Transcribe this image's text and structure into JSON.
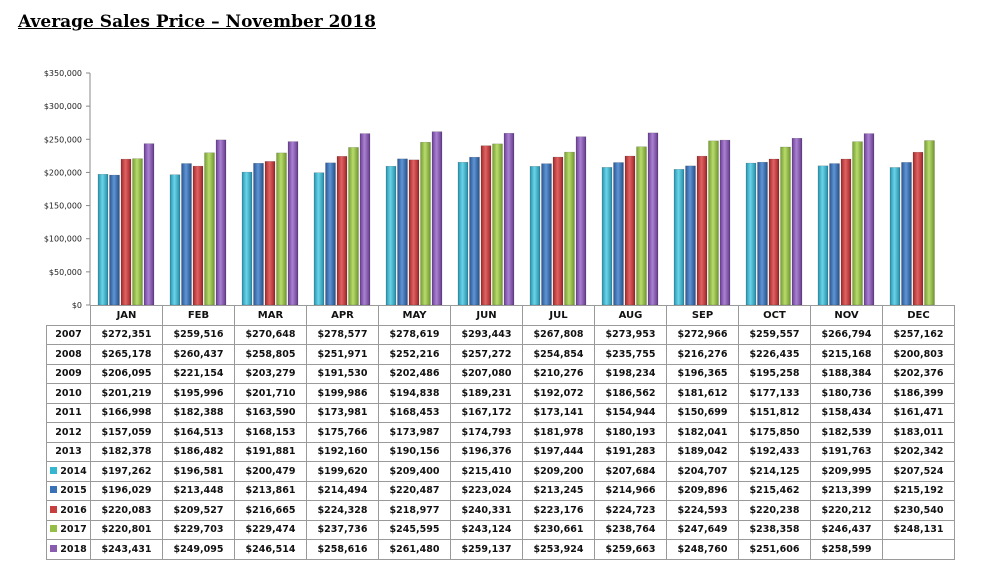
{
  "chart_data": {
    "type": "bar",
    "title": "Average Sales Price – November 2018",
    "categories": [
      "JAN",
      "FEB",
      "MAR",
      "APR",
      "MAY",
      "JUN",
      "JUL",
      "AUG",
      "SEP",
      "OCT",
      "NOV",
      "DEC"
    ],
    "ylim": [
      0,
      350000
    ],
    "yticks": [
      "$0",
      "$50,000",
      "$100,000",
      "$150,000",
      "$200,000",
      "$250,000",
      "$300,000",
      "$350,000"
    ],
    "ytick_values": [
      0,
      50000,
      100000,
      150000,
      200000,
      250000,
      300000,
      350000
    ],
    "series": [
      {
        "name": "2007",
        "color": null,
        "values": [
          272351,
          259516,
          270648,
          278577,
          278619,
          293443,
          267808,
          273953,
          272966,
          259557,
          266794,
          257162
        ],
        "labels": [
          "$272,351",
          "$259,516",
          "$270,648",
          "$278,577",
          "$278,619",
          "$293,443",
          "$267,808",
          "$273,953",
          "$272,966",
          "$259,557",
          "$266,794",
          "$257,162"
        ]
      },
      {
        "name": "2008",
        "color": null,
        "values": [
          265178,
          260437,
          258805,
          251971,
          252216,
          257272,
          254854,
          235755,
          216276,
          226435,
          215168,
          200803
        ],
        "labels": [
          "$265,178",
          "$260,437",
          "$258,805",
          "$251,971",
          "$252,216",
          "$257,272",
          "$254,854",
          "$235,755",
          "$216,276",
          "$226,435",
          "$215,168",
          "$200,803"
        ]
      },
      {
        "name": "2009",
        "color": null,
        "values": [
          206095,
          221154,
          203279,
          191530,
          202486,
          207080,
          210276,
          198234,
          196365,
          195258,
          188384,
          202376
        ],
        "labels": [
          "$206,095",
          "$221,154",
          "$203,279",
          "$191,530",
          "$202,486",
          "$207,080",
          "$210,276",
          "$198,234",
          "$196,365",
          "$195,258",
          "$188,384",
          "$202,376"
        ]
      },
      {
        "name": "2010",
        "color": null,
        "values": [
          201219,
          195996,
          201710,
          199986,
          194838,
          189231,
          192072,
          186562,
          181612,
          177133,
          180736,
          186399
        ],
        "labels": [
          "$201,219",
          "$195,996",
          "$201,710",
          "$199,986",
          "$194,838",
          "$189,231",
          "$192,072",
          "$186,562",
          "$181,612",
          "$177,133",
          "$180,736",
          "$186,399"
        ]
      },
      {
        "name": "2011",
        "color": null,
        "values": [
          166998,
          182388,
          163590,
          173981,
          168453,
          167172,
          173141,
          154944,
          150699,
          151812,
          158434,
          161471
        ],
        "labels": [
          "$166,998",
          "$182,388",
          "$163,590",
          "$173,981",
          "$168,453",
          "$167,172",
          "$173,141",
          "$154,944",
          "$150,699",
          "$151,812",
          "$158,434",
          "$161,471"
        ]
      },
      {
        "name": "2012",
        "color": null,
        "values": [
          157059,
          164513,
          168153,
          175766,
          173987,
          174793,
          181978,
          180193,
          182041,
          175850,
          182539,
          183011
        ],
        "labels": [
          "$157,059",
          "$164,513",
          "$168,153",
          "$175,766",
          "$173,987",
          "$174,793",
          "$181,978",
          "$180,193",
          "$182,041",
          "$175,850",
          "$182,539",
          "$183,011"
        ]
      },
      {
        "name": "2013",
        "color": null,
        "values": [
          182378,
          186482,
          191881,
          192160,
          190156,
          196376,
          197444,
          191283,
          189042,
          192433,
          191763,
          202342
        ],
        "labels": [
          "$182,378",
          "$186,482",
          "$191,881",
          "$192,160",
          "$190,156",
          "$196,376",
          "$197,444",
          "$191,283",
          "$189,042",
          "$192,433",
          "$191,763",
          "$202,342"
        ]
      },
      {
        "name": "2014",
        "color": "#35b6d0",
        "values": [
          197262,
          196581,
          200479,
          199620,
          209400,
          215410,
          209200,
          207684,
          204707,
          214125,
          209995,
          207524
        ],
        "labels": [
          "$197,262",
          "$196,581",
          "$200,479",
          "$199,620",
          "$209,400",
          "$215,410",
          "$209,200",
          "$207,684",
          "$204,707",
          "$214,125",
          "$209,995",
          "$207,524"
        ]
      },
      {
        "name": "2015",
        "color": "#3a72b8",
        "values": [
          196029,
          213448,
          213861,
          214494,
          220487,
          223024,
          213245,
          214966,
          209896,
          215462,
          213399,
          215192
        ],
        "labels": [
          "$196,029",
          "$213,448",
          "$213,861",
          "$214,494",
          "$220,487",
          "$223,024",
          "$213,245",
          "$214,966",
          "$209,896",
          "$215,462",
          "$213,399",
          "$215,192"
        ]
      },
      {
        "name": "2016",
        "color": "#c63e3e",
        "values": [
          220083,
          209527,
          216665,
          224328,
          218977,
          240331,
          223176,
          224723,
          224593,
          220238,
          220212,
          230540
        ],
        "labels": [
          "$220,083",
          "$209,527",
          "$216,665",
          "$224,328",
          "$218,977",
          "$240,331",
          "$223,176",
          "$224,723",
          "$224,593",
          "$220,238",
          "$220,212",
          "$230,540"
        ]
      },
      {
        "name": "2017",
        "color": "#94be47",
        "values": [
          220801,
          229703,
          229474,
          237736,
          245595,
          243124,
          230661,
          238764,
          247649,
          238358,
          246437,
          248131
        ],
        "labels": [
          "$220,801",
          "$229,703",
          "$229,474",
          "$237,736",
          "$245,595",
          "$243,124",
          "$230,661",
          "$238,764",
          "$247,649",
          "$238,358",
          "$246,437",
          "$248,131"
        ]
      },
      {
        "name": "2018",
        "color": "#8a5cb0",
        "values": [
          243431,
          249095,
          246514,
          258616,
          261480,
          259137,
          253924,
          259663,
          248760,
          251606,
          258599,
          null
        ],
        "labels": [
          "$243,431",
          "$249,095",
          "$246,514",
          "$258,616",
          "$261,480",
          "$259,137",
          "$253,924",
          "$259,663",
          "$248,760",
          "$251,606",
          "$258,599",
          ""
        ]
      }
    ]
  }
}
